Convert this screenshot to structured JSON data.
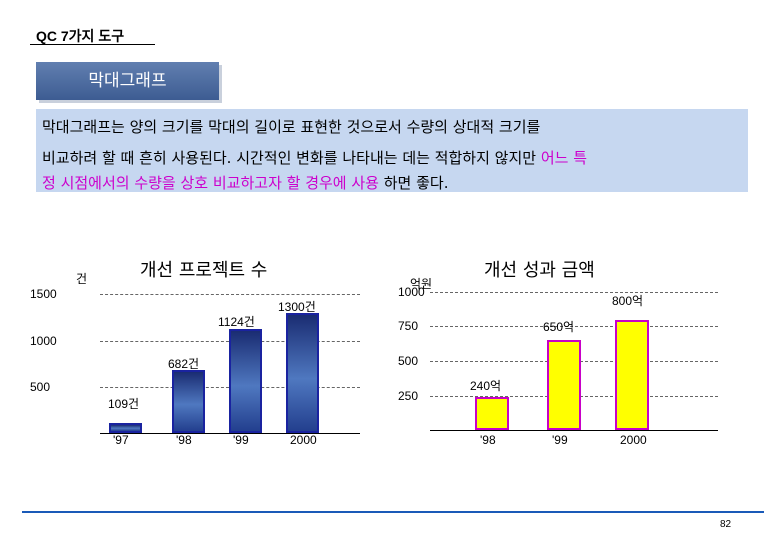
{
  "header": {
    "title": "QC 7가지 도구"
  },
  "section": {
    "label": "막대그래프"
  },
  "description": {
    "line1": "막대그래프는 양의 크기를 막대의 길이로 표현한 것으로서 수량의 상대적 크기를",
    "line2_plain": "비교하려 할 때 흔히 사용된다. 시간적인 변화를 나타내는 데는 적합하지 않지만 ",
    "line2_highlight": "어느 특",
    "line3_highlight": "정 시점에서의 수량을 상호 비교하고자 할 경우에 사용",
    "line3_plain": " 하면 좋다."
  },
  "page_number": "82",
  "chart_data": [
    {
      "type": "bar",
      "title": "개선 프로젝트 수",
      "ylabel": "건",
      "categories": [
        "'97",
        "'98",
        "'99",
        "2000"
      ],
      "values": [
        109,
        682,
        1124,
        1300
      ],
      "data_labels": [
        "109건",
        "682건",
        "1124건",
        "1300건"
      ],
      "yticks": [
        "1500",
        "1000",
        "500"
      ],
      "ylim": [
        0,
        1500
      ],
      "bar_color": "#3a5aa8",
      "grid": "dashed horizontal"
    },
    {
      "type": "bar",
      "title": "개선 성과 금액",
      "ylabel": "억원",
      "categories": [
        "'98",
        "'99",
        "2000"
      ],
      "values": [
        240,
        650,
        800
      ],
      "data_labels": [
        "240억",
        "650억",
        "800억"
      ],
      "yticks": [
        "1000",
        "750",
        "500",
        "250"
      ],
      "ylim": [
        0,
        1000
      ],
      "bar_color": "#ffff00",
      "bar_border_color": "#c800c8",
      "grid": "dashed horizontal"
    }
  ]
}
